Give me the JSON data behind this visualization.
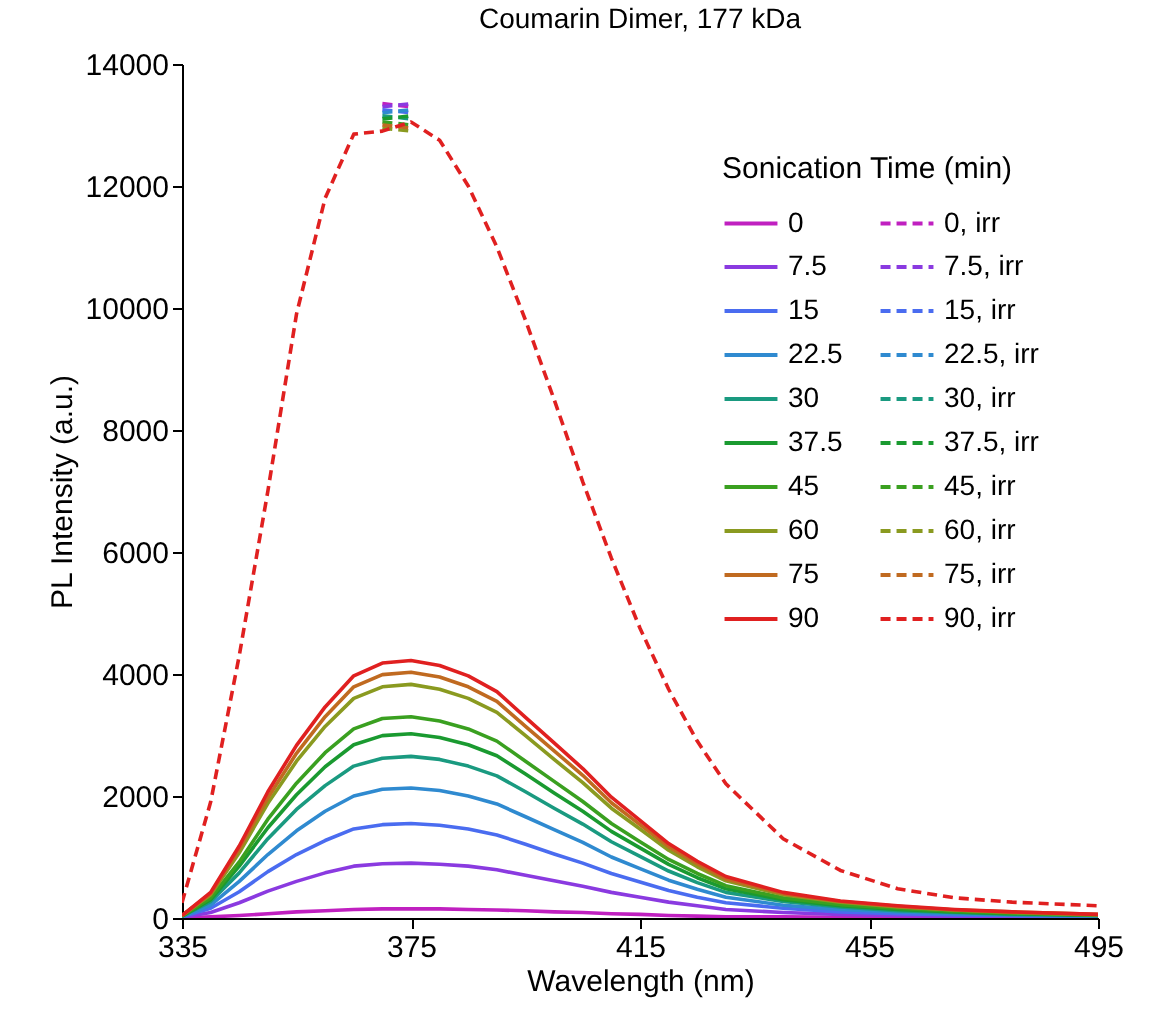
{
  "chart_data": {
    "type": "line",
    "title": "Coumarin Dimer, 177 kDa",
    "xlabel": "Wavelength (nm)",
    "ylabel": "PL Intensity (a.u.)",
    "legend_title": "Sonication Time (min)",
    "legend": "top right",
    "xlim": [
      335,
      495
    ],
    "ylim": [
      0,
      14000
    ],
    "xticks": [
      335,
      375,
      415,
      455,
      495
    ],
    "yticks": [
      0,
      2000,
      4000,
      6000,
      8000,
      10000,
      12000,
      14000
    ],
    "x": [
      335,
      340,
      345,
      350,
      355,
      360,
      365,
      370,
      375,
      380,
      385,
      390,
      395,
      400,
      405,
      410,
      415,
      420,
      425,
      430,
      440,
      450,
      460,
      470,
      480,
      495
    ],
    "series": [
      {
        "name": "0",
        "color": "#c020c0",
        "line_style": "solid",
        "values": [
          0,
          20,
          40,
          70,
          100,
          120,
          140,
          150,
          150,
          150,
          140,
          130,
          120,
          100,
          90,
          70,
          60,
          40,
          30,
          20,
          20,
          10,
          10,
          0,
          0,
          0
        ]
      },
      {
        "name": "7.5",
        "color": "#8a3ae0",
        "line_style": "solid",
        "values": [
          10,
          90,
          250,
          440,
          600,
          740,
          850,
          890,
          900,
          880,
          850,
          790,
          700,
          610,
          520,
          420,
          340,
          260,
          200,
          140,
          90,
          60,
          40,
          30,
          20,
          10
        ]
      },
      {
        "name": "15",
        "color": "#4a6cf0",
        "line_style": "solid",
        "values": [
          20,
          160,
          430,
          760,
          1040,
          1270,
          1460,
          1530,
          1550,
          1520,
          1460,
          1360,
          1210,
          1050,
          900,
          730,
          590,
          450,
          340,
          250,
          160,
          100,
          70,
          50,
          40,
          20
        ]
      },
      {
        "name": "22.5",
        "color": "#2f8ad0",
        "line_style": "solid",
        "values": [
          20,
          210,
          600,
          1040,
          1430,
          1750,
          2000,
          2110,
          2130,
          2090,
          2000,
          1870,
          1660,
          1450,
          1240,
          1000,
          810,
          620,
          470,
          340,
          210,
          140,
          100,
          70,
          50,
          30
        ]
      },
      {
        "name": "30",
        "color": "#1a9a80",
        "line_style": "solid",
        "values": [
          30,
          270,
          740,
          1300,
          1780,
          2170,
          2490,
          2620,
          2650,
          2600,
          2490,
          2330,
          2070,
          1800,
          1540,
          1250,
          1010,
          770,
          580,
          420,
          270,
          180,
          120,
          90,
          60,
          40
        ]
      },
      {
        "name": "37.5",
        "color": "#1a9a30",
        "line_style": "solid",
        "values": [
          30,
          300,
          850,
          1480,
          2020,
          2480,
          2840,
          2990,
          3020,
          2960,
          2840,
          2660,
          2360,
          2050,
          1750,
          1420,
          1150,
          880,
          660,
          480,
          300,
          200,
          140,
          100,
          70,
          40
        ]
      },
      {
        "name": "45",
        "color": "#3aa020",
        "line_style": "solid",
        "values": [
          30,
          330,
          920,
          1620,
          2210,
          2710,
          3100,
          3270,
          3300,
          3230,
          3100,
          2900,
          2570,
          2240,
          1910,
          1550,
          1250,
          960,
          730,
          530,
          330,
          220,
          160,
          110,
          80,
          50
        ]
      },
      {
        "name": "60",
        "color": "#8a9a20",
        "line_style": "solid",
        "values": [
          40,
          380,
          1070,
          1880,
          2570,
          3140,
          3600,
          3790,
          3830,
          3750,
          3600,
          3370,
          2990,
          2600,
          2220,
          1800,
          1460,
          1110,
          840,
          610,
          380,
          260,
          180,
          130,
          90,
          50
        ]
      },
      {
        "name": "75",
        "color": "#c06a20",
        "line_style": "solid",
        "values": [
          40,
          400,
          1130,
          1970,
          2700,
          3300,
          3790,
          3990,
          4030,
          3950,
          3790,
          3550,
          3140,
          2740,
          2340,
          1890,
          1530,
          1170,
          890,
          640,
          400,
          270,
          190,
          130,
          100,
          60
        ]
      },
      {
        "name": "90",
        "color": "#e02020",
        "line_style": "solid",
        "values": [
          40,
          420,
          1180,
          2070,
          2830,
          3460,
          3970,
          4180,
          4220,
          4140,
          3970,
          3710,
          3290,
          2870,
          2450,
          1980,
          1600,
          1220,
          930,
          680,
          420,
          280,
          200,
          140,
          100,
          60
        ]
      },
      {
        "name": "0, irr",
        "color": "#c020c0",
        "line_style": "dashed",
        "values": [
          null,
          null,
          null,
          null,
          null,
          null,
          null,
          13350,
          13300,
          null,
          null,
          null,
          null,
          null,
          null,
          null,
          null,
          null,
          null,
          null,
          null,
          null,
          null,
          null,
          null,
          null
        ]
      },
      {
        "name": "7.5, irr",
        "color": "#8a3ae0",
        "line_style": "dashed",
        "values": [
          null,
          null,
          null,
          null,
          null,
          null,
          null,
          13300,
          13350,
          null,
          null,
          null,
          null,
          null,
          null,
          null,
          null,
          null,
          null,
          null,
          null,
          null,
          null,
          null,
          null,
          null
        ]
      },
      {
        "name": "15, irr",
        "color": "#4a6cf0",
        "line_style": "dashed",
        "values": [
          null,
          null,
          null,
          null,
          null,
          null,
          null,
          13250,
          13200,
          null,
          null,
          null,
          null,
          null,
          null,
          null,
          null,
          null,
          null,
          null,
          null,
          null,
          null,
          null,
          null,
          null
        ]
      },
      {
        "name": "22.5, irr",
        "color": "#2f8ad0",
        "line_style": "dashed",
        "values": [
          null,
          null,
          null,
          null,
          null,
          null,
          null,
          13200,
          13250,
          null,
          null,
          null,
          null,
          null,
          null,
          null,
          null,
          null,
          null,
          null,
          null,
          null,
          null,
          null,
          null,
          null
        ]
      },
      {
        "name": "30, irr",
        "color": "#1a9a80",
        "line_style": "dashed",
        "values": [
          null,
          null,
          null,
          null,
          null,
          null,
          null,
          13150,
          13100,
          null,
          null,
          null,
          null,
          null,
          null,
          null,
          null,
          null,
          null,
          null,
          null,
          null,
          null,
          null,
          null,
          null
        ]
      },
      {
        "name": "37.5, irr",
        "color": "#1a9a30",
        "line_style": "dashed",
        "values": [
          null,
          null,
          null,
          null,
          null,
          null,
          null,
          13100,
          13150,
          null,
          null,
          null,
          null,
          null,
          null,
          null,
          null,
          null,
          null,
          null,
          null,
          null,
          null,
          null,
          null,
          null
        ]
      },
      {
        "name": "45, irr",
        "color": "#3aa020",
        "line_style": "dashed",
        "values": [
          null,
          null,
          null,
          null,
          null,
          null,
          null,
          13050,
          13000,
          null,
          null,
          null,
          null,
          null,
          null,
          null,
          null,
          null,
          null,
          null,
          null,
          null,
          null,
          null,
          null,
          null
        ]
      },
      {
        "name": "60, irr",
        "color": "#8a9a20",
        "line_style": "dashed",
        "values": [
          null,
          null,
          null,
          null,
          null,
          null,
          null,
          12950,
          12900,
          null,
          null,
          null,
          null,
          null,
          null,
          null,
          null,
          null,
          null,
          null,
          null,
          null,
          null,
          null,
          null,
          null
        ]
      },
      {
        "name": "75, irr",
        "color": "#c06a20",
        "line_style": "dashed",
        "values": [
          null,
          null,
          null,
          null,
          null,
          null,
          null,
          13000,
          12950,
          null,
          null,
          null,
          null,
          null,
          null,
          null,
          null,
          null,
          null,
          null,
          null,
          null,
          null,
          null,
          null,
          null
        ]
      },
      {
        "name": "90, irr",
        "color": "#e02020",
        "line_style": "dashed",
        "values": [
          250,
          1900,
          4300,
          7000,
          9900,
          11800,
          12850,
          12900,
          13050,
          12750,
          12000,
          11000,
          9800,
          8500,
          7150,
          5900,
          4750,
          3750,
          2900,
          2200,
          1300,
          780,
          480,
          330,
          260,
          200
        ]
      }
    ]
  }
}
